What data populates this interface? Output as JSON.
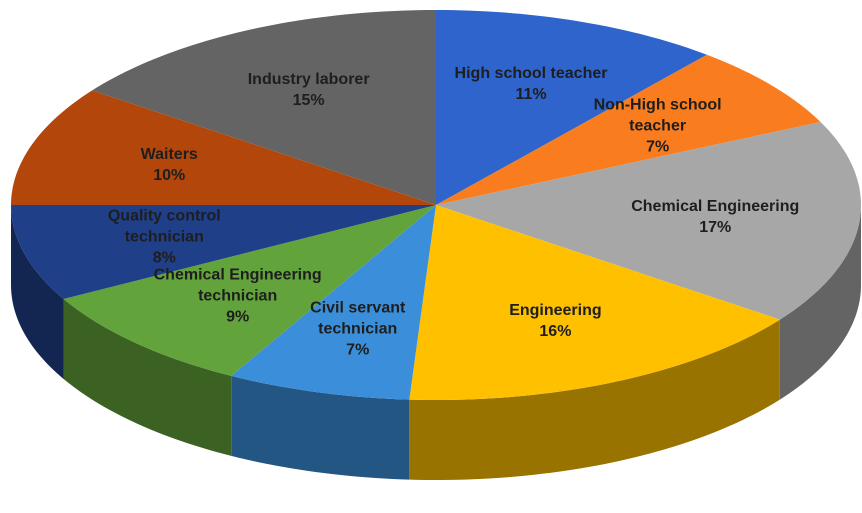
{
  "chart_data": {
    "type": "pie3d",
    "categories": [
      "High school teacher",
      "Non-High school teacher",
      "Chemical Engineering",
      "Engineering",
      "Civil servant technician",
      "Chemical Engineering technician",
      "Quality control technician",
      "Waiters",
      "Industry laborer"
    ],
    "values": [
      11,
      7,
      17,
      16,
      7,
      9,
      8,
      10,
      15
    ],
    "value_labels": [
      "11%",
      "7%",
      "17%",
      "16%",
      "7%",
      "9%",
      "8%",
      "10%",
      "15%"
    ],
    "colors": [
      "#2e64cc",
      "#f97d1e",
      "#a7a7a7",
      "#ffc000",
      "#3b8fda",
      "#62a43b",
      "#1f3f88",
      "#b3460b",
      "#646464"
    ]
  }
}
